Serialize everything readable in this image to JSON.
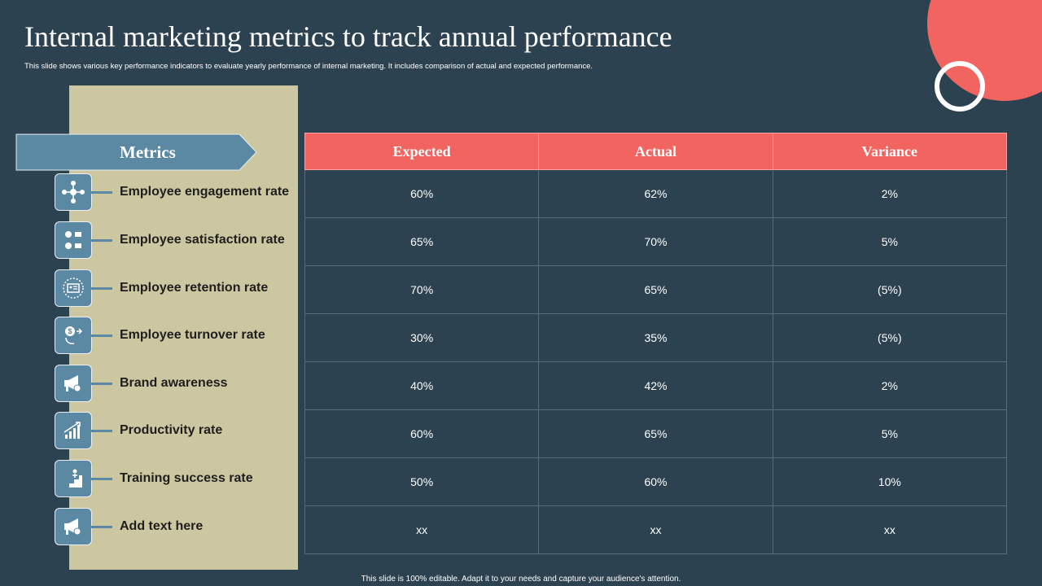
{
  "title": "Internal marketing metrics to track annual performance",
  "subtitle": "This slide shows various key performance indicators to evaluate yearly performance of internal marketing. It includes comparison of actual and expected performance.",
  "metrics_header": "Metrics",
  "metrics": [
    {
      "label": "Employee engagement rate",
      "icon": "team-network-icon"
    },
    {
      "label": "Employee satisfaction rate",
      "icon": "feedback-faces-icon"
    },
    {
      "label": "Employee retention rate",
      "icon": "id-card-icon"
    },
    {
      "label": "Employee turnover rate",
      "icon": "dollar-exchange-icon"
    },
    {
      "label": "Brand awareness",
      "icon": "megaphone-icon"
    },
    {
      "label": "Productivity rate",
      "icon": "growth-chart-icon"
    },
    {
      "label": "Training success rate",
      "icon": "stairs-climb-icon"
    },
    {
      "label": "Add text here",
      "icon": "megaphone-icon"
    }
  ],
  "table": {
    "headers": [
      "Expected",
      "Actual",
      "Variance"
    ],
    "rows": [
      [
        "60%",
        "62%",
        "2%"
      ],
      [
        "65%",
        "70%",
        "5%"
      ],
      [
        "70%",
        "65%",
        "(5%)"
      ],
      [
        "30%",
        "35%",
        "(5%)"
      ],
      [
        "40%",
        "42%",
        "2%"
      ],
      [
        "60%",
        "65%",
        "5%"
      ],
      [
        "50%",
        "60%",
        "10%"
      ],
      [
        "xx",
        "xx",
        "xx"
      ]
    ]
  },
  "footer": "This slide is 100% editable. Adapt it to your needs and capture your audience's attention.",
  "colors": {
    "background": "#2d4250",
    "accent": "#f2645f",
    "panel": "#cdc7a1",
    "icon_bg": "#5b89a3"
  }
}
